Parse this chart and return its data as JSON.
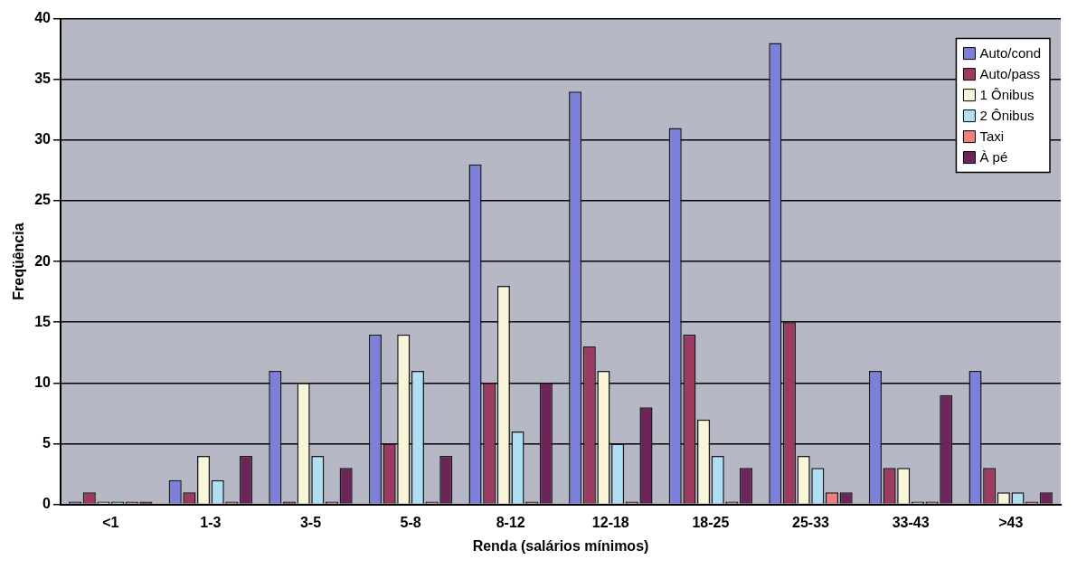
{
  "chart_data": {
    "type": "bar",
    "xlabel": "Renda (salários mínimos)",
    "ylabel": "Freqüência",
    "categories": [
      "<1",
      "1-3",
      "3-5",
      "5-8",
      "8-12",
      "12-18",
      "18-25",
      "25-33",
      "33-43",
      ">43"
    ],
    "series": [
      {
        "name": "Auto/cond",
        "color": "#7c80d8",
        "values": [
          0,
          2,
          11,
          14,
          28,
          34,
          31,
          38,
          11,
          11
        ]
      },
      {
        "name": "Auto/pass",
        "color": "#9c3a60",
        "values": [
          1,
          1,
          0,
          5,
          10,
          13,
          14,
          15,
          3,
          3
        ]
      },
      {
        "name": "1 Ônibus",
        "color": "#f8f5d8",
        "values": [
          0,
          4,
          10,
          14,
          18,
          11,
          7,
          4,
          3,
          1
        ]
      },
      {
        "name": "2 Ônibus",
        "color": "#b0def2",
        "values": [
          0,
          2,
          4,
          11,
          6,
          5,
          4,
          3,
          0,
          1
        ]
      },
      {
        "name": "Taxi",
        "color": "#ee8080",
        "values": [
          0,
          0,
          0,
          0,
          0,
          0,
          0,
          1,
          0,
          0
        ]
      },
      {
        "name": "À pé",
        "color": "#6c2558",
        "values": [
          0,
          4,
          3,
          4,
          10,
          8,
          3,
          1,
          9,
          1
        ]
      }
    ],
    "ylim": [
      0,
      40
    ],
    "yticks": [
      0,
      5,
      10,
      15,
      20,
      25,
      30,
      35,
      40
    ],
    "grid": "y",
    "legend": "top right"
  }
}
